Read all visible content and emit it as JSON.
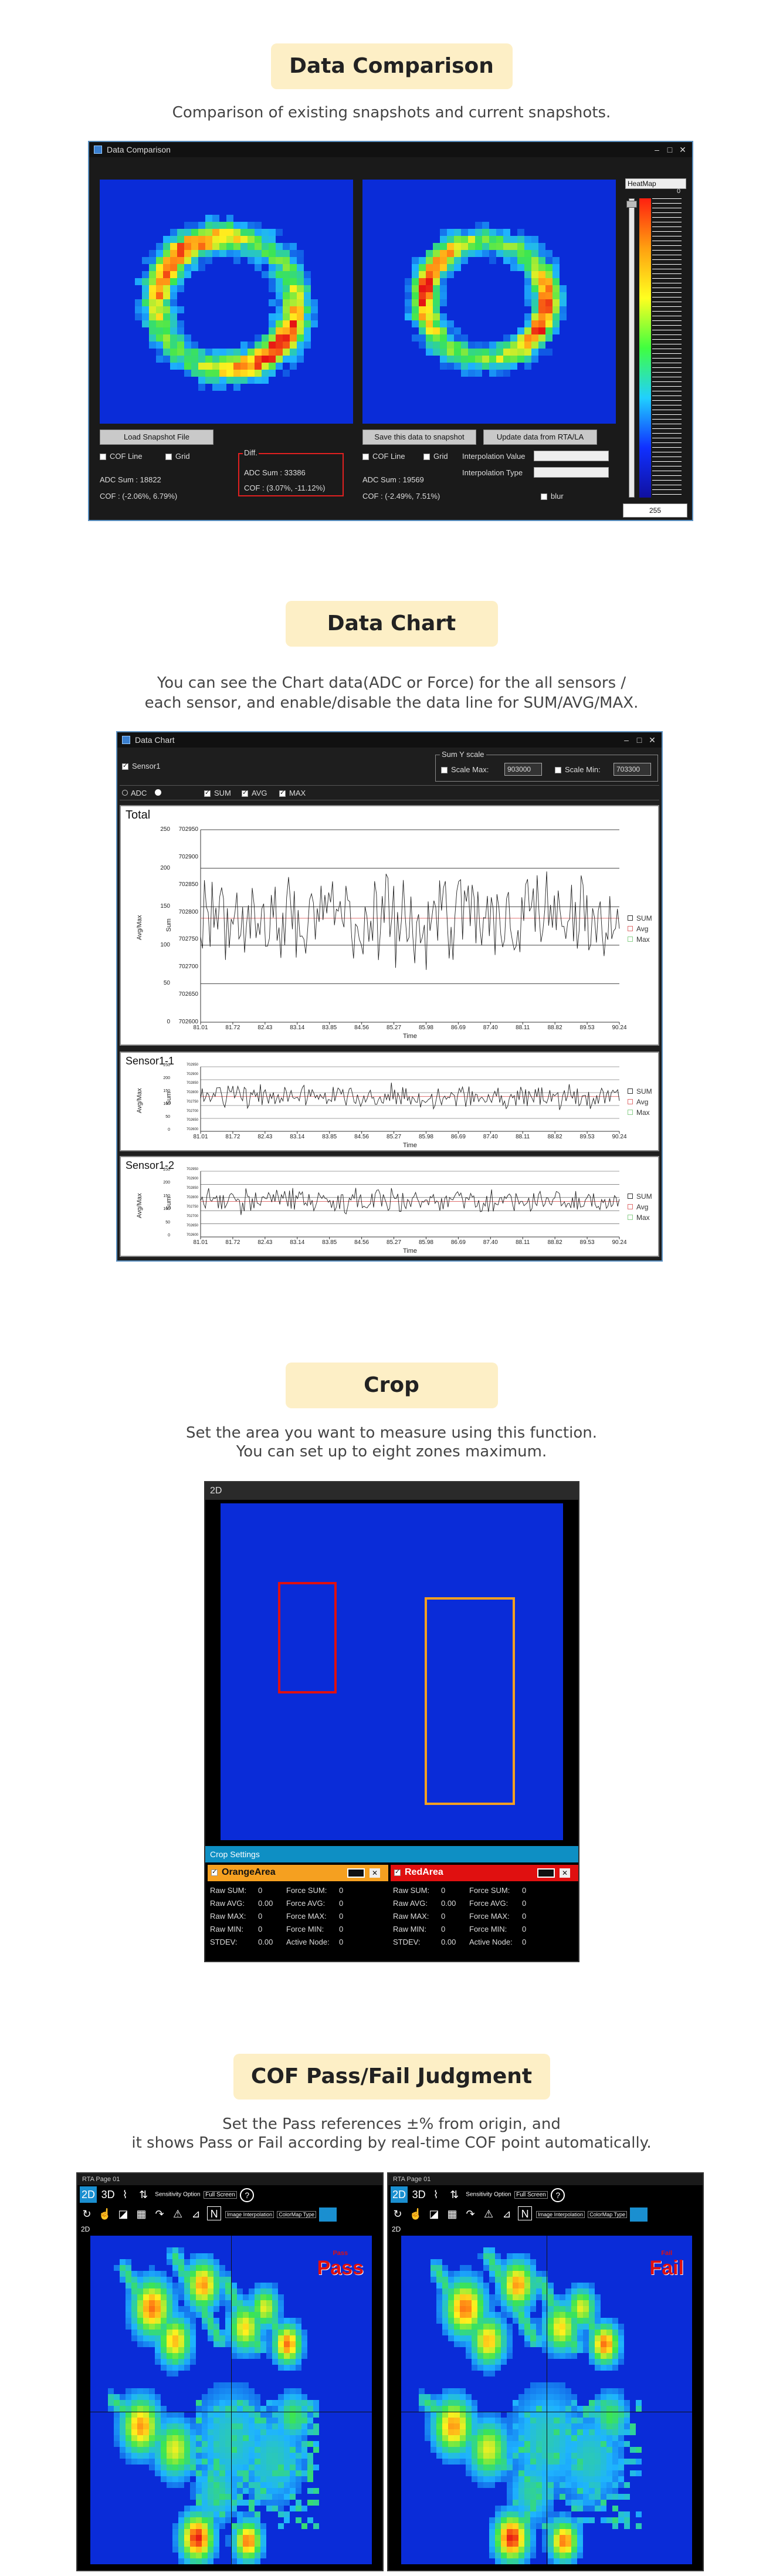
{
  "sections": {
    "compare": {
      "title": "Data Comparison",
      "desc": "Comparison of existing snapshots and current snapshots.",
      "window_title": "Data Comparison",
      "load_btn": "Load Snapshot File",
      "save_btn": "Save this data to snapshot",
      "update_btn": "Update data from RTA/LA",
      "cof_line": "COF Line",
      "grid": "Grid",
      "left_adc": "ADC Sum : 18822",
      "left_cof": "COF : (-2.06%, 6.79%)",
      "diff_label": "Diff.",
      "diff_adc": "ADC Sum : 33386",
      "diff_cof": "COF : (3.07%, -11.12%)",
      "right_adc": "ADC Sum : 19569",
      "right_cof": "COF : (-2.49%, 7.51%)",
      "interp_value": "Interpolation Value",
      "interp_type": "Interpolation Type",
      "blur": "blur",
      "colormap": "HeatMap",
      "scale_top": "0",
      "scale_max": "255"
    },
    "chart": {
      "title": "Data Chart",
      "desc1": "You can see the Chart data(ADC or Force) for the all sensors /",
      "desc2": "each sensor, and enable/disable the data line for SUM/AVG/MAX.",
      "window_title": "Data Chart",
      "sensor_check": "Sensor1",
      "sumy": "Sum Y scale",
      "scale_max": "Scale Max:",
      "scale_max_val": "903000",
      "scale_min": "Scale Min:",
      "scale_min_val": "703300",
      "adc": "ADC",
      "sum": "SUM",
      "avg": "AVG",
      "max": "MAX",
      "legend": [
        "SUM",
        "Avg",
        "Max"
      ],
      "panels": [
        {
          "title": "Total",
          "ylab_left": "Avg/Max",
          "ylab_right": "Sum"
        },
        {
          "title": "Sensor1-1",
          "ylab_left": "Avg/Max",
          "ylab_right": "Sum"
        },
        {
          "title": "Sensor1-2",
          "ylab_left": "Avg/Max",
          "ylab_right": "Sum"
        }
      ],
      "x_title": "Time",
      "x_ticks": [
        "81.01",
        "81.72",
        "82.43",
        "83.14",
        "83.85",
        "84.56",
        "85.27",
        "85.98",
        "86.69",
        "87.40",
        "88.11",
        "88.82",
        "89.53",
        "90.24"
      ],
      "y_left": [
        "250",
        "200",
        "150",
        "100",
        "50",
        "0"
      ],
      "y_right": [
        "702950",
        "702900",
        "702850",
        "702800",
        "702750",
        "702700",
        "702650",
        "702600"
      ]
    },
    "crop": {
      "title": "Crop",
      "desc1": "Set the area you want to measure using this function.",
      "desc2": "You can set up to eight zones maximum.",
      "view_label": "2D",
      "settings_label": "Crop Settings",
      "areas": [
        {
          "name": "OrangeArea",
          "color": "#f5a020"
        },
        {
          "name": "RedArea",
          "color": "#e01010"
        }
      ],
      "stats_left": [
        [
          "Raw SUM:",
          "0",
          "Force SUM:",
          "0"
        ],
        [
          "Raw AVG:",
          "0.00",
          "Force AVG:",
          "0"
        ],
        [
          "Raw MAX:",
          "0",
          "Force MAX:",
          "0"
        ],
        [
          "Raw MIN:",
          "0",
          "Force MIN:",
          "0"
        ],
        [
          "STDEV:",
          "0.00",
          "Active Node:",
          "0"
        ]
      ],
      "stats_right": [
        [
          "Raw SUM:",
          "0",
          "Force SUM:",
          "0"
        ],
        [
          "Raw AVG:",
          "0.00",
          "Force AVG:",
          "0"
        ],
        [
          "Raw MAX:",
          "0",
          "Force MAX:",
          "0"
        ],
        [
          "Raw MIN:",
          "0",
          "Force MIN:",
          "0"
        ],
        [
          "STDEV:",
          "0.00",
          "Active Node:",
          "0"
        ]
      ]
    },
    "cof": {
      "title": "COF Pass/Fail Judgment",
      "desc1": "Set the Pass references ±% from origin, and",
      "desc2": "it shows Pass or Fail according by real-time COF point automatically.",
      "window_left": "RTA Page 01",
      "window_right": "RTA Page 01",
      "tab_2d": "2D",
      "tab_3d": "3D",
      "sensitivity": "Sensitivity Option",
      "full_screen": "Full Screen",
      "image_interp": "Image Interpolation",
      "colormap_type": "ColorMap Type",
      "view_label": "2D",
      "pass_text": "Pass",
      "fail_text": "Fail",
      "sub_left": "Pass",
      "sub_right": "Fail"
    }
  }
}
